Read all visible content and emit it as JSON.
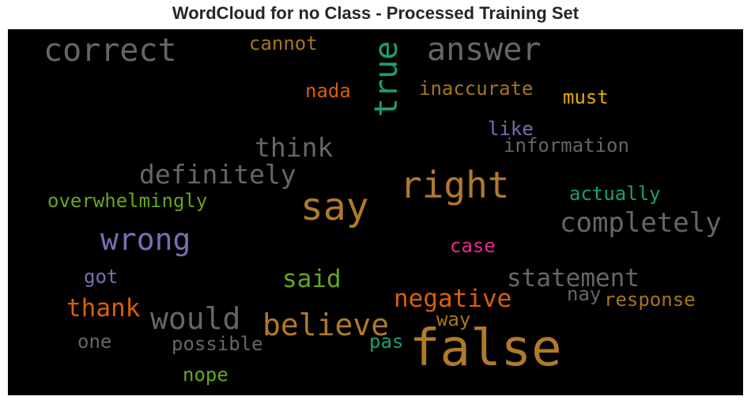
{
  "chart_data": {
    "type": "wordcloud",
    "title": "WordCloud for no Class - Processed Training Set",
    "background": "#000000",
    "words": [
      {
        "text": "false",
        "color": "#b07a2a"
      },
      {
        "text": "say",
        "color": "#b07a2a"
      },
      {
        "text": "right",
        "color": "#b07a2a"
      },
      {
        "text": "correct",
        "color": "#666666"
      },
      {
        "text": "answer",
        "color": "#666666"
      },
      {
        "text": "true",
        "color": "#1b9e77"
      },
      {
        "text": "wrong",
        "color": "#7570b3"
      },
      {
        "text": "believe",
        "color": "#b07a2a"
      },
      {
        "text": "would",
        "color": "#666666"
      },
      {
        "text": "completely",
        "color": "#666666"
      },
      {
        "text": "definitely",
        "color": "#666666"
      },
      {
        "text": "think",
        "color": "#666666"
      },
      {
        "text": "statement",
        "color": "#666666"
      },
      {
        "text": "negative",
        "color": "#d95f02"
      },
      {
        "text": "thank",
        "color": "#d95f02"
      },
      {
        "text": "said",
        "color": "#66a61e"
      },
      {
        "text": "overwhelmingly",
        "color": "#66a61e"
      },
      {
        "text": "information",
        "color": "#666666"
      },
      {
        "text": "inaccurate",
        "color": "#a6761d"
      },
      {
        "text": "cannot",
        "color": "#a6761d"
      },
      {
        "text": "must",
        "color": "#e6ab02"
      },
      {
        "text": "nada",
        "color": "#d95f02"
      },
      {
        "text": "like",
        "color": "#7570b3"
      },
      {
        "text": "actually",
        "color": "#1b9e77"
      },
      {
        "text": "case",
        "color": "#e7298a"
      },
      {
        "text": "response",
        "color": "#a6761d"
      },
      {
        "text": "nay",
        "color": "#666666"
      },
      {
        "text": "way",
        "color": "#a6761d"
      },
      {
        "text": "possible",
        "color": "#666666"
      },
      {
        "text": "pas",
        "color": "#1b9e77"
      },
      {
        "text": "got",
        "color": "#7570b3"
      },
      {
        "text": "one",
        "color": "#666666"
      },
      {
        "text": "nope",
        "color": "#66a61e"
      }
    ]
  }
}
